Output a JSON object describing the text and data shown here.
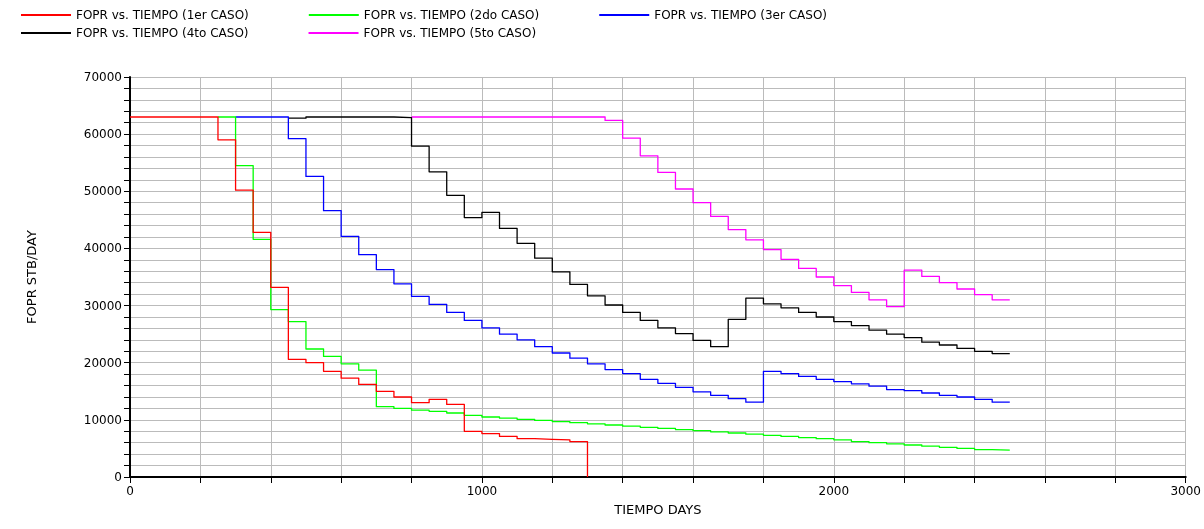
{
  "chart_data": {
    "type": "step",
    "xlabel": "TIEMPO DAYS",
    "ylabel": "FOPR STB/DAY",
    "xlim": [
      0,
      3000
    ],
    "ylim": [
      0,
      70000
    ],
    "xticks": [
      0,
      {
        "value": 200,
        "label": null
      },
      {
        "value": 400,
        "label": null
      },
      {
        "value": 600,
        "label": null
      },
      {
        "value": 800,
        "label": null
      },
      1000,
      {
        "value": 1200,
        "label": null
      },
      {
        "value": 1400,
        "label": null
      },
      {
        "value": 1600,
        "label": null
      },
      {
        "value": 1800,
        "label": null
      },
      2000,
      {
        "value": 2200,
        "label": null
      },
      {
        "value": 2400,
        "label": null
      },
      {
        "value": 2600,
        "label": null
      },
      {
        "value": 2800,
        "label": null
      },
      3000
    ],
    "yticks": [
      0,
      {
        "value": 2000,
        "label": null
      },
      {
        "value": 4000,
        "label": null
      },
      {
        "value": 6000,
        "label": null
      },
      {
        "value": 8000,
        "label": null
      },
      10000,
      {
        "value": 12000,
        "label": null
      },
      {
        "value": 14000,
        "label": null
      },
      {
        "value": 16000,
        "label": null
      },
      {
        "value": 18000,
        "label": null
      },
      20000,
      {
        "value": 22000,
        "label": null
      },
      {
        "value": 24000,
        "label": null
      },
      {
        "value": 26000,
        "label": null
      },
      {
        "value": 28000,
        "label": null
      },
      30000,
      {
        "value": 32000,
        "label": null
      },
      {
        "value": 34000,
        "label": null
      },
      {
        "value": 36000,
        "label": null
      },
      {
        "value": 38000,
        "label": null
      },
      40000,
      {
        "value": 42000,
        "label": null
      },
      {
        "value": 44000,
        "label": null
      },
      {
        "value": 46000,
        "label": null
      },
      {
        "value": 48000,
        "label": null
      },
      50000,
      {
        "value": 52000,
        "label": null
      },
      {
        "value": 54000,
        "label": null
      },
      {
        "value": 56000,
        "label": null
      },
      {
        "value": 58000,
        "label": null
      },
      60000,
      {
        "value": 62000,
        "label": null
      },
      {
        "value": 64000,
        "label": null
      },
      {
        "value": 66000,
        "label": null
      },
      {
        "value": 68000,
        "label": null
      },
      70000
    ],
    "grid": true,
    "legend": "top",
    "marker": "none",
    "line_style": "solid",
    "series": [
      {
        "name": "FOPR vs. TIEMPO (1er CASO)",
        "color": "#ff0000",
        "x": [
          0,
          250,
          300,
          350,
          400,
          450,
          500,
          550,
          600,
          650,
          700,
          750,
          800,
          850,
          900,
          950,
          1000,
          1050,
          1100,
          1150,
          1200,
          1250,
          1300
        ],
        "values": [
          63000,
          59000,
          50200,
          42800,
          33200,
          20600,
          20000,
          18500,
          17300,
          16200,
          15000,
          14000,
          13000,
          13600,
          12700,
          8000,
          7600,
          7100,
          6700,
          6600,
          6500,
          6200,
          0
        ]
      },
      {
        "name": "FOPR vs. TIEMPO (2do CASO)",
        "color": "#00ff00",
        "x": [
          250,
          300,
          350,
          400,
          450,
          500,
          550,
          600,
          650,
          700,
          750,
          800,
          850,
          900,
          950,
          1000,
          1050,
          1100,
          1150,
          1200,
          1250,
          1300,
          1350,
          1400,
          1450,
          1500,
          1550,
          1600,
          1650,
          1700,
          1750,
          1800,
          1850,
          1900,
          1950,
          2000,
          2050,
          2100,
          2150,
          2200,
          2250,
          2300,
          2350,
          2400,
          2450,
          2500
        ],
        "values": [
          63000,
          54500,
          41600,
          29300,
          27200,
          22400,
          21100,
          19800,
          18700,
          12300,
          12000,
          11700,
          11500,
          11200,
          10800,
          10500,
          10300,
          10100,
          9900,
          9700,
          9500,
          9300,
          9100,
          8900,
          8700,
          8500,
          8300,
          8100,
          7900,
          7700,
          7500,
          7300,
          7100,
          6900,
          6700,
          6500,
          6200,
          6000,
          5800,
          5600,
          5400,
          5200,
          5000,
          4800,
          4700,
          4600
        ]
      },
      {
        "name": "FOPR vs. TIEMPO (3er CASO)",
        "color": "#0000ff",
        "x": [
          300,
          450,
          500,
          550,
          600,
          650,
          700,
          750,
          800,
          850,
          900,
          950,
          1000,
          1050,
          1100,
          1150,
          1200,
          1250,
          1300,
          1350,
          1400,
          1450,
          1500,
          1550,
          1600,
          1650,
          1700,
          1750,
          1800,
          1850,
          1900,
          1950,
          2000,
          2050,
          2100,
          2150,
          2200,
          2250,
          2300,
          2350,
          2400,
          2450,
          2500
        ],
        "values": [
          63000,
          59200,
          52600,
          46600,
          42100,
          38900,
          36300,
          33800,
          31600,
          30200,
          28800,
          27400,
          26100,
          25000,
          24000,
          22800,
          21700,
          20800,
          19800,
          18800,
          18100,
          17100,
          16400,
          15700,
          14900,
          14300,
          13700,
          13100,
          18500,
          18100,
          17600,
          17100,
          16700,
          16300,
          15900,
          15300,
          15100,
          14700,
          14300,
          14000,
          13600,
          13100,
          13100
        ]
      },
      {
        "name": "FOPR vs. TIEMPO (4to CASO)",
        "color": "#000000",
        "x": [
          450,
          500,
          750,
          800,
          850,
          900,
          950,
          1000,
          1050,
          1100,
          1150,
          1200,
          1250,
          1300,
          1350,
          1400,
          1450,
          1500,
          1550,
          1600,
          1650,
          1700,
          1750,
          1800,
          1850,
          1900,
          1950,
          2000,
          2050,
          2100,
          2150,
          2200,
          2250,
          2300,
          2350,
          2400,
          2450,
          2500
        ],
        "values": [
          62800,
          63000,
          62900,
          57900,
          53400,
          49300,
          45400,
          46300,
          43500,
          40900,
          38300,
          35900,
          33700,
          31700,
          30100,
          28800,
          27400,
          26100,
          25100,
          23900,
          22800,
          27600,
          31300,
          30300,
          29600,
          28800,
          28000,
          27200,
          26500,
          25700,
          25000,
          24400,
          23600,
          23100,
          22500,
          22000,
          21600,
          21600
        ]
      },
      {
        "name": "FOPR vs. TIEMPO (5to CASO)",
        "color": "#ff00ff",
        "x": [
          800,
          1350,
          1400,
          1450,
          1500,
          1550,
          1600,
          1650,
          1700,
          1750,
          1800,
          1850,
          1900,
          1950,
          2000,
          2050,
          2100,
          2150,
          2200,
          2250,
          2300,
          2350,
          2400,
          2450,
          2500
        ],
        "values": [
          63000,
          62400,
          59300,
          56200,
          53300,
          50400,
          48000,
          45600,
          43300,
          41500,
          39800,
          38100,
          36500,
          35000,
          33500,
          32300,
          31000,
          29800,
          36200,
          35100,
          34000,
          32900,
          31900,
          31000,
          31000
        ]
      }
    ]
  }
}
